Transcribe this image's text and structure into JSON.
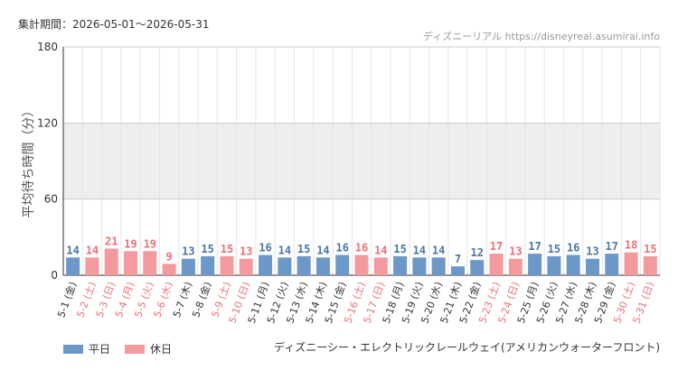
{
  "header": {
    "period_label": "集計期間：2026-05-01～2026-05-31",
    "brand": "ディズニーリアル https://disneyreal.asumirai.info"
  },
  "caption": "ディズニーシー・エレクトリックレールウェイ(アメリカンウォーターフロント)",
  "legend": {
    "weekday_label": "平日",
    "holiday_label": "休日"
  },
  "colors": {
    "weekday": "#6c98c8",
    "weekday_value": "#4a76a8",
    "holiday": "#f49a9e",
    "holiday_value": "#ef6f77",
    "band": "#eeeeee",
    "grid": "#e6e6e6",
    "axis": "#333333"
  },
  "chart_data": {
    "type": "bar",
    "ylabel": "平均待ち時間（分）",
    "ylim": [
      0,
      180
    ],
    "yticks": [
      0,
      60,
      120,
      180
    ],
    "shaded_band": [
      60,
      120
    ],
    "grid": true,
    "legend_position": "bottom-left",
    "categories": [
      "5-1 (金)",
      "5-2 (土)",
      "5-3 (日)",
      "5-4 (月)",
      "5-5 (火)",
      "5-6 (水)",
      "5-7 (木)",
      "5-8 (金)",
      "5-9 (土)",
      "5-10 (日)",
      "5-11 (月)",
      "5-12 (火)",
      "5-13 (水)",
      "5-14 (木)",
      "5-15 (金)",
      "5-16 (土)",
      "5-17 (日)",
      "5-18 (月)",
      "5-19 (火)",
      "5-20 (水)",
      "5-21 (木)",
      "5-22 (金)",
      "5-23 (土)",
      "5-24 (日)",
      "5-25 (月)",
      "5-26 (火)",
      "5-27 (水)",
      "5-28 (木)",
      "5-29 (金)",
      "5-30 (土)",
      "5-31 (日)"
    ],
    "values": [
      14,
      14,
      21,
      19,
      19,
      9,
      13,
      15,
      15,
      13,
      16,
      14,
      15,
      14,
      16,
      16,
      14,
      15,
      14,
      14,
      7,
      12,
      17,
      13,
      17,
      15,
      16,
      13,
      17,
      18,
      15
    ],
    "series": [
      {
        "name": "平日",
        "day_indices": [
          0,
          6,
          7,
          10,
          11,
          12,
          13,
          14,
          17,
          18,
          19,
          20,
          21,
          24,
          25,
          26,
          27,
          28
        ]
      },
      {
        "name": "休日",
        "day_indices": [
          1,
          2,
          3,
          4,
          5,
          8,
          9,
          15,
          16,
          22,
          23,
          29,
          30
        ]
      }
    ]
  }
}
